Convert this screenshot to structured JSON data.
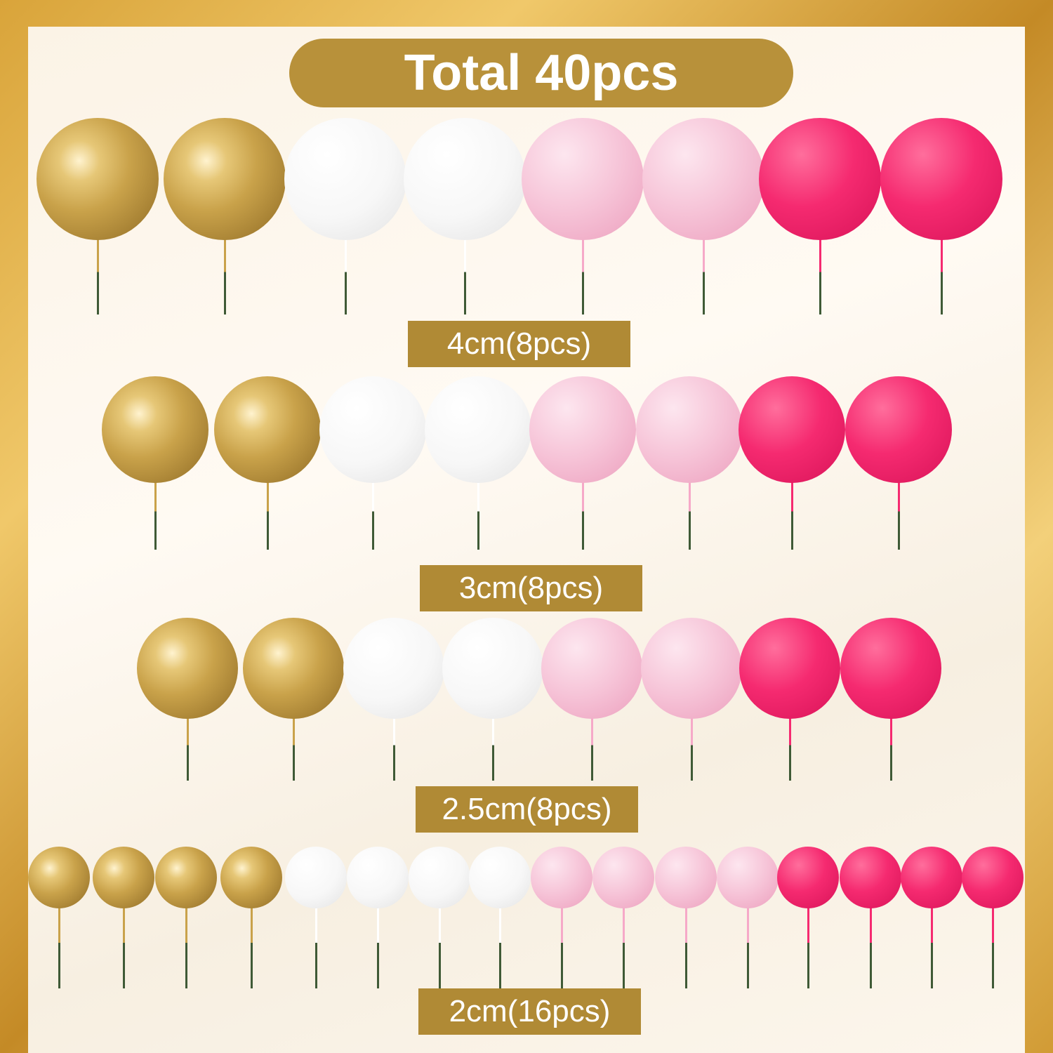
{
  "title": "Total 40pcs",
  "colors": {
    "gold": "#c9a24a",
    "white": "#f7f7f7",
    "light_pink": "#f6c3d7",
    "hot_pink": "#f52a70",
    "label_bg": "#b08a35",
    "stem": "#3f5a36"
  },
  "rows": [
    {
      "label": "4cm(8pcs)",
      "diameter_cm": 4,
      "count": 8,
      "colors": [
        "gold",
        "gold",
        "white",
        "white",
        "light_pink",
        "light_pink",
        "hot_pink",
        "hot_pink"
      ]
    },
    {
      "label": "3cm(8pcs)",
      "diameter_cm": 3,
      "count": 8,
      "colors": [
        "gold",
        "gold",
        "white",
        "white",
        "light_pink",
        "light_pink",
        "hot_pink",
        "hot_pink"
      ]
    },
    {
      "label": "2.5cm(8pcs)",
      "diameter_cm": 2.5,
      "count": 8,
      "colors": [
        "gold",
        "gold",
        "white",
        "white",
        "light_pink",
        "light_pink",
        "hot_pink",
        "hot_pink"
      ]
    },
    {
      "label": "2cm(16pcs)",
      "diameter_cm": 2,
      "count": 16,
      "colors": [
        "gold",
        "gold",
        "gold",
        "gold",
        "white",
        "white",
        "white",
        "white",
        "light_pink",
        "light_pink",
        "light_pink",
        "light_pink",
        "hot_pink",
        "hot_pink",
        "hot_pink",
        "hot_pink"
      ]
    }
  ]
}
